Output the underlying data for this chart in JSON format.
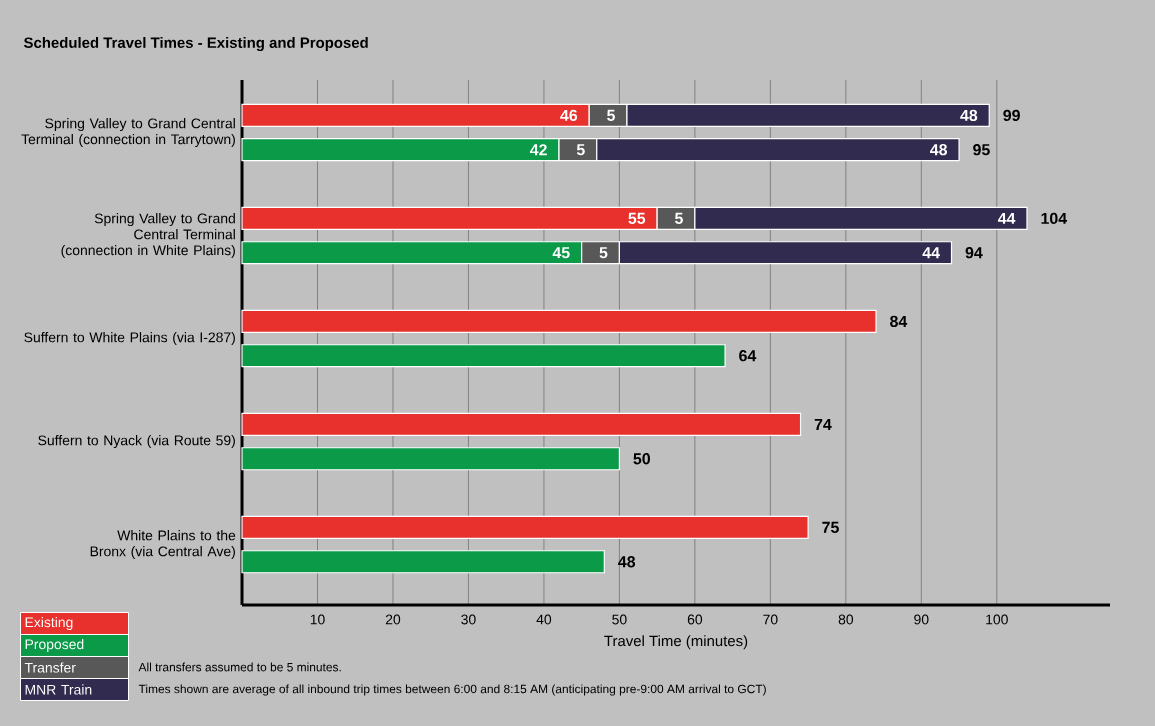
{
  "chart_data": {
    "type": "bar",
    "orientation": "horizontal",
    "stacked": true,
    "title": "Scheduled Travel Times - Existing and Proposed",
    "xlabel": "Travel Time (minutes)",
    "categories": [
      "Spring Valley to Grand Central Terminal (connection in Tarrytown)",
      null,
      null,
      "Spring Valley to Grand Central Terminal (connection in White Plains)",
      null,
      null,
      "Suffern to White Plains (via I-287)",
      null,
      null,
      "Suffern to Nyack (via Route 59)",
      null,
      null,
      "White Plains to the Bronx (via Central Ave)",
      null
    ],
    "series": [
      {
        "name": "Existing",
        "color": "#e8302c",
        "values": [
          46,
          null,
          null,
          55,
          null,
          null,
          84,
          null,
          null,
          74,
          null,
          null,
          75,
          null
        ],
        "value_labels": [
          "46",
          null,
          null,
          "55",
          null,
          null,
          null,
          null,
          null,
          null,
          null,
          null,
          null,
          null
        ]
      },
      {
        "name": "Proposed",
        "color": "#0a9a48",
        "values": [
          null,
          42,
          null,
          null,
          45,
          null,
          null,
          64,
          null,
          null,
          50,
          null,
          null,
          48
        ],
        "value_labels": [
          null,
          "42",
          null,
          null,
          "45",
          null,
          null,
          null,
          null,
          null,
          null,
          null,
          null,
          null
        ]
      },
      {
        "name": "Transfer",
        "color": "#585858",
        "values": [
          5,
          5,
          null,
          5,
          5,
          null,
          null,
          null,
          null,
          null,
          null,
          null,
          null,
          null
        ],
        "value_labels": [
          "5",
          "5",
          null,
          "5",
          "5",
          null,
          null,
          null,
          null,
          null,
          null,
          null,
          null,
          null
        ]
      },
      {
        "name": "MNR Train",
        "color": "#322b50",
        "values": [
          48,
          48,
          null,
          44,
          44,
          null,
          null,
          null,
          null,
          null,
          null,
          null,
          null,
          null
        ],
        "value_labels": [
          "48",
          "48",
          null,
          "44",
          "44",
          null,
          null,
          null,
          null,
          null,
          null,
          null,
          null,
          null
        ]
      }
    ],
    "totals": [
      "99",
      "95",
      null,
      "104",
      "94",
      null,
      "84",
      "64",
      null,
      "74",
      "50",
      null,
      "75",
      "48"
    ],
    "xlim": [
      0,
      115
    ],
    "xticks": [
      10,
      20,
      30,
      40,
      50,
      60,
      70,
      80,
      90,
      100
    ],
    "grid": "x",
    "legend": "bottom left",
    "annotations": [
      "All transfers assumed to be 5 minutes.",
      "Times shown are average of all inbound trip times between 6:00 and 8:15 AM (anticipating pre-9:00 AM arrival to GCT)"
    ]
  }
}
